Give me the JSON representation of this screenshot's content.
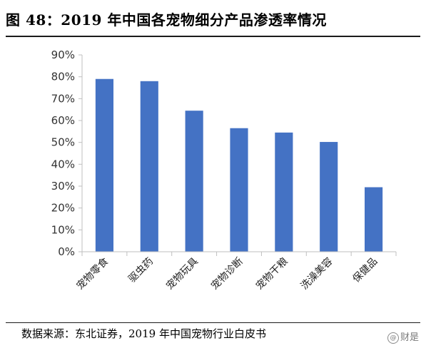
{
  "header": {
    "title": "图 48：2019 年中国各宠物细分产品渗透率情况"
  },
  "footer": {
    "source": "数据来源：东北证券，2019 年中国宠物行业白皮书",
    "watermark": "财是",
    "watermark_icon": "@"
  },
  "colors": {
    "bar": "#4472C4",
    "axis": "#bfbfbf"
  },
  "chart_data": {
    "type": "bar",
    "title": "",
    "xlabel": "",
    "ylabel": "",
    "categories": [
      "宠物零食",
      "驱虫药",
      "宠物玩具",
      "宠物诊断",
      "宠物干粮",
      "洗澡美容",
      "保健品"
    ],
    "values": [
      79,
      78,
      64.5,
      56.5,
      54.5,
      50.2,
      29.5
    ],
    "value_unit": "%",
    "ylim": [
      0,
      90
    ],
    "yticks": [
      0,
      10,
      20,
      30,
      40,
      50,
      60,
      70,
      80,
      90
    ],
    "ytick_labels": [
      "0%",
      "10%",
      "20%",
      "30%",
      "40%",
      "50%",
      "60%",
      "70%",
      "80%",
      "90%"
    ],
    "grid": false,
    "legend": "none"
  }
}
